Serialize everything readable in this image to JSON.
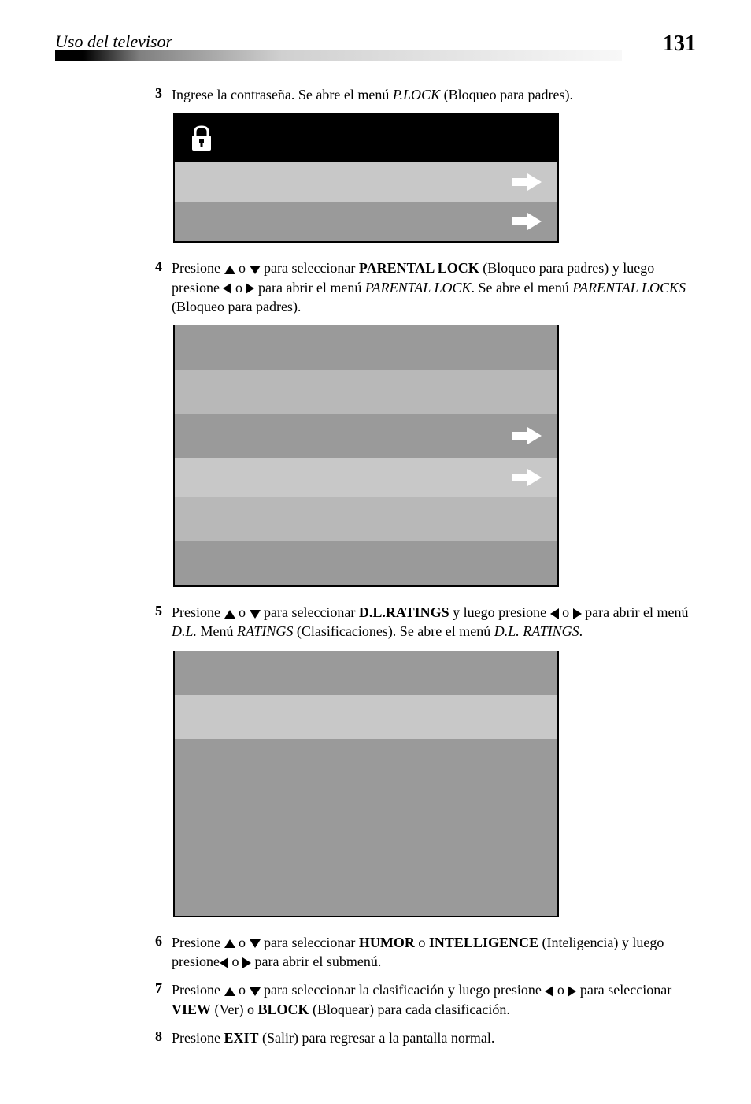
{
  "header": {
    "section_title": "Uso del televisor",
    "page_number": "131"
  },
  "steps": [
    {
      "num": "3",
      "parts": [
        {
          "t": "Ingrese la contraseña. Se abre el menú "
        },
        {
          "t": "P.LOCK",
          "italic": true
        },
        {
          "t": " (Bloqueo para padres)."
        }
      ]
    },
    {
      "num": "4",
      "parts": [
        {
          "t": "Presione "
        },
        {
          "icon": "up"
        },
        {
          "t": "  o "
        },
        {
          "icon": "down"
        },
        {
          "t": "  para seleccionar "
        },
        {
          "t": "PARENTAL LOCK",
          "bold": true
        },
        {
          "t": " (Bloqueo para padres) y luego presione "
        },
        {
          "icon": "left"
        },
        {
          "t": " o "
        },
        {
          "icon": "right"
        },
        {
          "t": "  para abrir el menú "
        },
        {
          "t": "PARENTAL LOCK",
          "italic": true
        },
        {
          "t": ". Se abre el menú "
        },
        {
          "t": "PARENTAL LOCKS",
          "italic": true
        },
        {
          "t": " (Bloqueo para padres)."
        }
      ]
    },
    {
      "num": "5",
      "parts": [
        {
          "t": "Presione "
        },
        {
          "icon": "up"
        },
        {
          "t": "  o "
        },
        {
          "icon": "down"
        },
        {
          "t": "  para seleccionar "
        },
        {
          "t": "D.L.RATINGS",
          "bold": true
        },
        {
          "t": " y luego presione "
        },
        {
          "icon": "left"
        },
        {
          "t": " o "
        },
        {
          "icon": "right"
        },
        {
          "t": "  para abrir el menú "
        },
        {
          "t": "D.L.",
          "italic": true
        },
        {
          "t": " Menú "
        },
        {
          "t": "RATINGS",
          "italic": true
        },
        {
          "t": "  (Clasificaciones). Se abre el menú "
        },
        {
          "t": "D.L. RATINGS",
          "italic": true
        },
        {
          "t": "."
        }
      ]
    },
    {
      "num": "6",
      "parts": [
        {
          "t": "Presione "
        },
        {
          "icon": "up"
        },
        {
          "t": "  o "
        },
        {
          "icon": "down"
        },
        {
          "t": "  para seleccionar "
        },
        {
          "t": "HUMOR",
          "bold": true
        },
        {
          "t": "  o "
        },
        {
          "t": "INTELLIGENCE",
          "bold": true
        },
        {
          "t": " (Inteligencia) y luego presione"
        },
        {
          "icon": "left"
        },
        {
          "t": " o "
        },
        {
          "icon": "right"
        },
        {
          "t": "  para abrir el submenú."
        }
      ]
    },
    {
      "num": "7",
      "parts": [
        {
          "t": "Presione "
        },
        {
          "icon": "up"
        },
        {
          "t": "  o "
        },
        {
          "icon": "down"
        },
        {
          "t": "  para seleccionar la clasificación y luego presione "
        },
        {
          "icon": "left"
        },
        {
          "t": " o "
        },
        {
          "icon": "right"
        },
        {
          "t": "  para seleccionar "
        },
        {
          "t": "VIEW",
          "bold": true
        },
        {
          "t": " (Ver) o "
        },
        {
          "t": "BLOCK",
          "bold": true
        },
        {
          "t": " (Bloquear) para cada clasificación."
        }
      ]
    },
    {
      "num": "8",
      "parts": [
        {
          "t": "Presione "
        },
        {
          "t": "EXIT",
          "bold": true
        },
        {
          "t": " (Salir) para regresar a la pantalla normal."
        }
      ]
    }
  ],
  "menus": {
    "menu1": {
      "has_lock_icon": true,
      "rows": [
        {
          "shade": "light",
          "arrow": true
        },
        {
          "shade": "dark",
          "arrow": true
        }
      ]
    },
    "menu2": {
      "has_lock_icon": false,
      "rows": [
        {
          "shade": "dark",
          "arrow": false,
          "tall": true
        },
        {
          "shade": "plain",
          "arrow": false,
          "tall": true
        },
        {
          "shade": "dark",
          "arrow": true,
          "tall": true
        },
        {
          "shade": "light",
          "arrow": true
        },
        {
          "shade": "plain",
          "arrow": false,
          "tall": true
        },
        {
          "shade": "dark",
          "arrow": false,
          "tall": true
        }
      ]
    },
    "menu3": {
      "has_lock_icon": false,
      "rows": [
        {
          "shade": "dark",
          "arrow": false,
          "tall": true
        },
        {
          "shade": "light",
          "arrow": false,
          "tall": true
        },
        {
          "shade": "dark",
          "arrow": false,
          "tall": true
        },
        {
          "shade": "dark",
          "arrow": false,
          "tall": true
        },
        {
          "shade": "dark",
          "arrow": false,
          "tall": true
        },
        {
          "shade": "dark",
          "arrow": false,
          "tall": true
        }
      ]
    }
  },
  "colors": {
    "page_bg": "#ffffff",
    "text": "#000000",
    "menu_border": "#000000",
    "menu_header_bg": "#000000",
    "menu_dark": "#9a9a9a",
    "menu_light": "#c8c8c8",
    "menu_plain": "#b8b8b8",
    "arrow_fill": "#ffffff"
  }
}
